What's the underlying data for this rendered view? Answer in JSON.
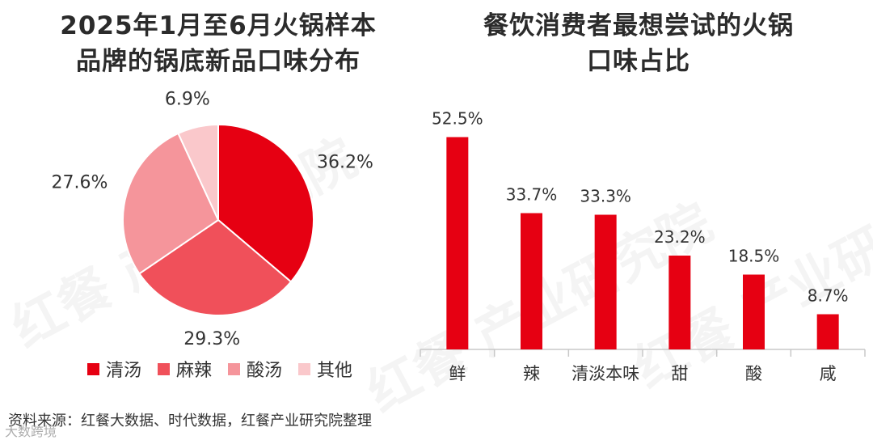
{
  "left_title_line1": "2025年1月至6月火锅样本",
  "left_title_line2": "品牌的锅底新品口味分布",
  "right_title_line1": "餐饮消费者最想尝试的火锅",
  "right_title_line2": "口味占比",
  "watermark_text": "红餐 产业研究院",
  "source_text": "资料来源：红餐大数据、时代数据，红餐产业研究院整理",
  "wechat_text": "大数跨境",
  "chart_data": [
    {
      "type": "pie",
      "title": "2025年1月至6月火锅样本品牌的锅底新品口味分布",
      "labels": [
        "清汤",
        "麻辣",
        "酸汤",
        "其他"
      ],
      "values": [
        36.2,
        29.3,
        27.6,
        6.9
      ],
      "value_labels": [
        "36.2%",
        "29.3%",
        "27.6%",
        "6.9%"
      ],
      "colors": [
        "#e60012",
        "#f0505a",
        "#f5959b",
        "#fac8cb"
      ],
      "legend_position": "bottom"
    },
    {
      "type": "bar",
      "title": "餐饮消费者最想尝试的火锅口味占比",
      "categories": [
        "鲜",
        "辣",
        "清淡本味",
        "甜",
        "酸",
        "咸"
      ],
      "values": [
        52.5,
        33.7,
        33.3,
        23.2,
        18.5,
        8.7
      ],
      "value_labels": [
        "52.5%",
        "33.7%",
        "33.3%",
        "23.2%",
        "18.5%",
        "8.7%"
      ],
      "color": "#e60012",
      "ylim": [
        0,
        60
      ],
      "grid": false
    }
  ]
}
